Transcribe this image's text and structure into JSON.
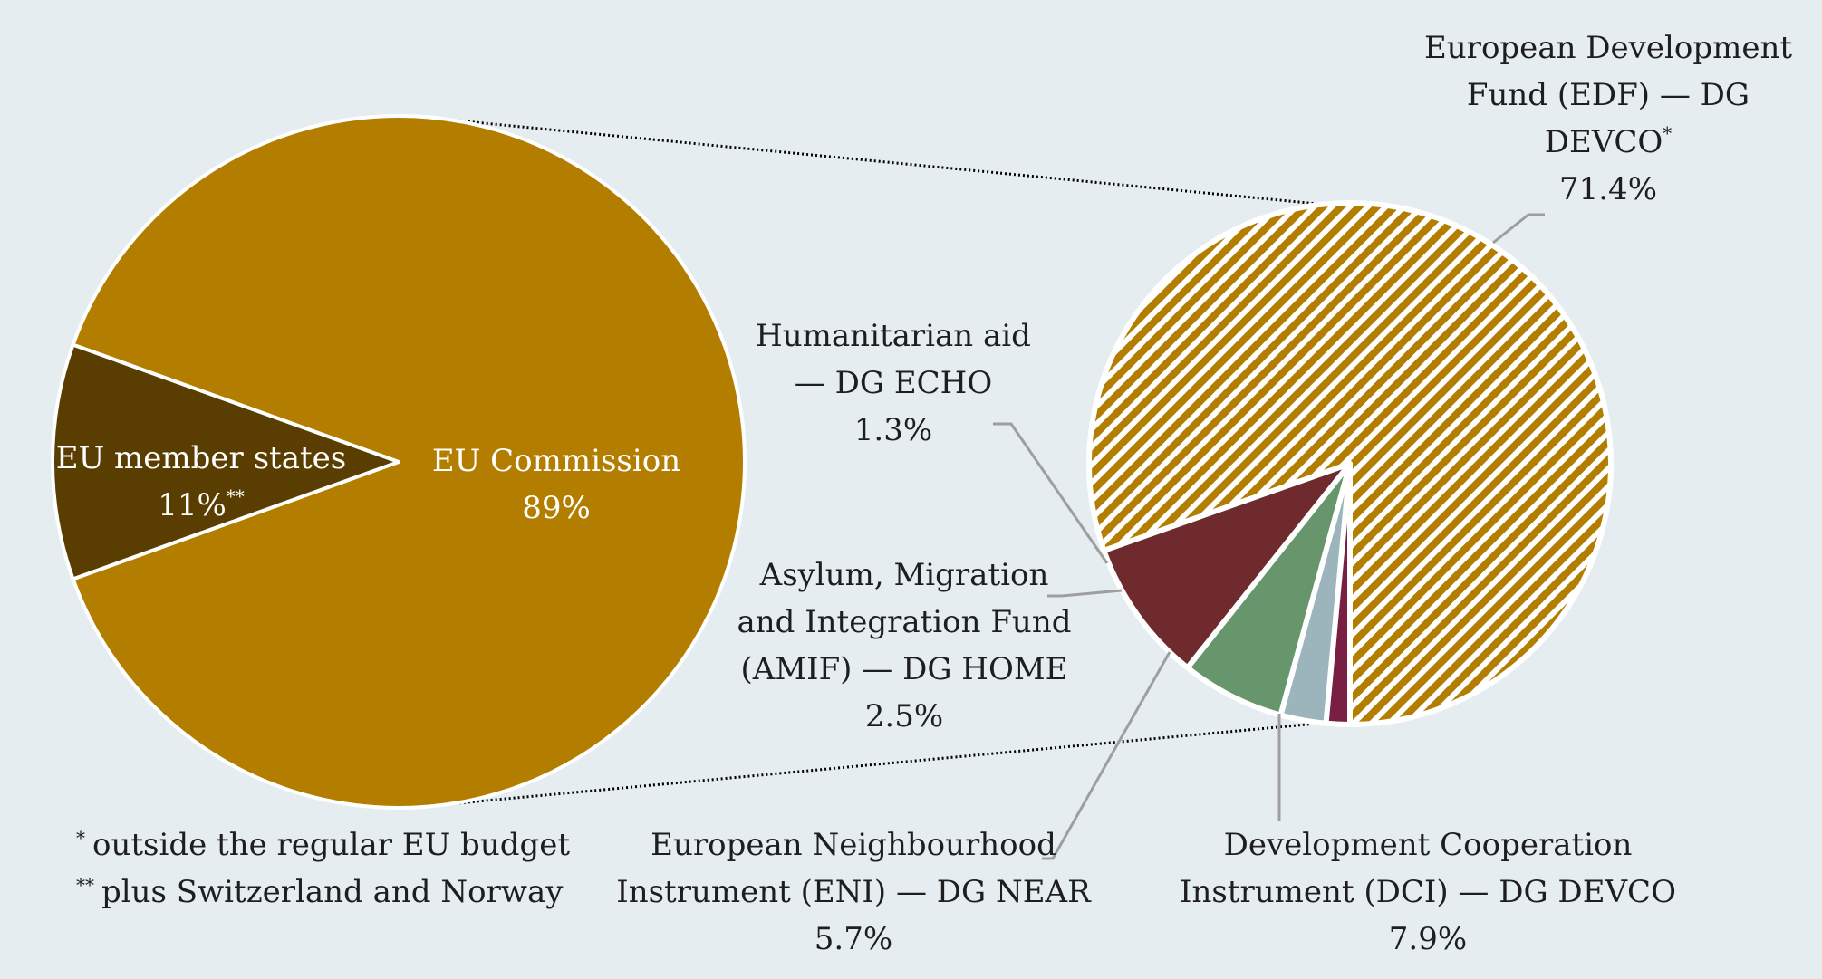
{
  "chart_data": [
    {
      "type": "pie",
      "slices": [
        {
          "label": "EU Commission",
          "value_label": "89%",
          "value": 89,
          "color": "#b37d00"
        },
        {
          "label": "EU member states",
          "value_label": "11%",
          "value_sup": "**",
          "value": 11,
          "color": "#5a3d00"
        }
      ]
    },
    {
      "type": "pie",
      "slices": [
        {
          "label_lines": [
            "European Development",
            "Fund (EDF) — DG",
            "DEVCO"
          ],
          "label_sup": "*",
          "value_label": "71.4%",
          "value": 71.4,
          "color": "#b37d00",
          "hatched": true
        },
        {
          "label_lines": [
            "Development Cooperation",
            "Instrument (DCI) — DG DEVCO"
          ],
          "value_label": "7.9%",
          "value": 7.9,
          "color": "#6e2a2c"
        },
        {
          "label_lines": [
            "European Neighbourhood",
            "Instrument (ENI) — DG NEAR"
          ],
          "value_label": "5.7%",
          "value": 5.7,
          "color": "#67956c"
        },
        {
          "label_lines": [
            "Asylum, Migration",
            "and Integration Fund",
            "(AMIF) — DG HOME"
          ],
          "value_label": "2.5%",
          "value": 2.5,
          "color": "#9cb5bd"
        },
        {
          "label_lines": [
            "Humanitarian aid",
            "— DG ECHO"
          ],
          "value_label": "1.3%",
          "value": 1.3,
          "color": "#7a1f44"
        }
      ]
    }
  ],
  "footnotes": [
    {
      "marker": "*",
      "text": "outside the regular EU budget"
    },
    {
      "marker": "**",
      "text": "plus Switzerland and Norway"
    }
  ],
  "colors": {
    "background": "#e5edf0",
    "connector": "#9e9e9e"
  }
}
